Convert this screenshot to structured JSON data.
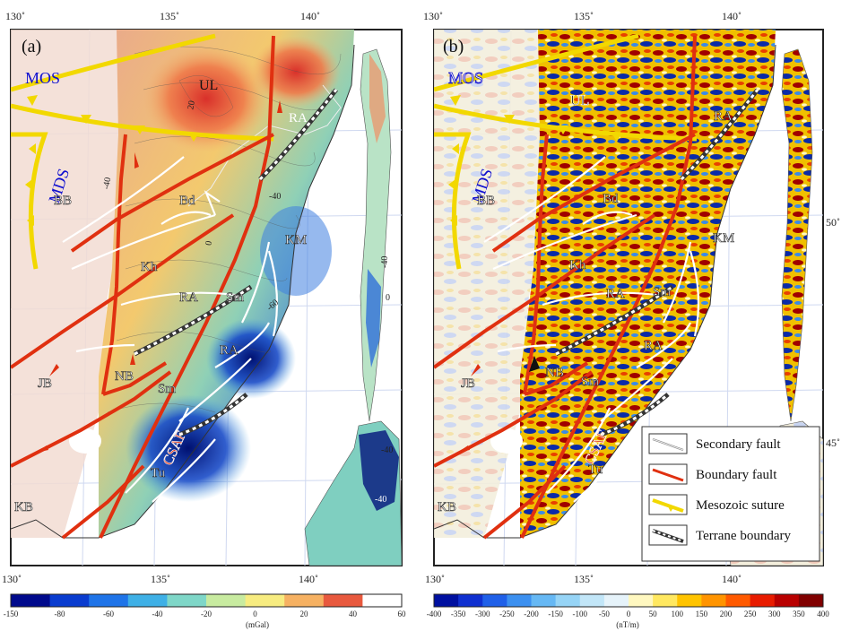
{
  "panels": [
    {
      "id": "a",
      "panel_label": "(a)",
      "lon_ticks_top": [
        "130˚",
        "135˚",
        "140˚"
      ],
      "lon_ticks_bottom": [
        "130˚",
        "135˚",
        "140˚"
      ],
      "region_labels": {
        "MOS": "MOS",
        "MDS": "MDS",
        "UL": "UL",
        "RA1": "RA",
        "BB": "BB",
        "Bd": "Bd",
        "KM": "KM",
        "Kh": "Kh",
        "RA2": "RA",
        "Sm1": "Sm",
        "RA3": "RA",
        "NB": "NB",
        "JB": "JB",
        "Sm2": "Sm",
        "CSAF": "CSAF",
        "Tu": "Tu",
        "KB": "KB"
      },
      "contour_labels": [
        "20",
        "-40",
        "-40",
        "0",
        "-40",
        "-60",
        "-40",
        "-40",
        "0"
      ],
      "colorbar": {
        "ticks": [
          "-150",
          "-80",
          "-60",
          "-40",
          "-20",
          "0",
          "20",
          "40",
          "60"
        ],
        "unit": "(mGal)",
        "colors": [
          "#000a8c",
          "#0a3ccf",
          "#1f74e8",
          "#3fb0e6",
          "#7fd7c8",
          "#c8eba0",
          "#f7ec80",
          "#f6b162",
          "#e8593e",
          "#ffffff"
        ]
      }
    },
    {
      "id": "b",
      "panel_label": "(b)",
      "lon_ticks_top": [
        "130˚",
        "135˚",
        "140˚"
      ],
      "lon_ticks_bottom": [
        "130˚",
        "135˚",
        "140˚"
      ],
      "lat_ticks": [
        "50˚",
        "45˚"
      ],
      "region_labels": {
        "MOS": "MOS",
        "MDS": "MDS",
        "UL": "UL",
        "RA1": "RA",
        "BB": "BB",
        "Bd": "Bd",
        "KM": "KM",
        "Kh": "Kh",
        "RA2": "RA",
        "Sm1": "Sm",
        "RA3": "RA",
        "NB": "NB",
        "JB": "JB",
        "Sm2": "Sm",
        "CSAF": "CSAF",
        "Tu": "Tu",
        "KB": "KB"
      },
      "colorbar": {
        "ticks": [
          "-400",
          "-350",
          "-300",
          "-250",
          "-200",
          "-150",
          "-100",
          "-50",
          "0",
          "50",
          "100",
          "150",
          "200",
          "250",
          "300",
          "350",
          "400"
        ],
        "unit": "(nT/m)",
        "colors": [
          "#0010a0",
          "#1030d0",
          "#2060e8",
          "#3c90f0",
          "#66b8f4",
          "#96d4f6",
          "#c2e6f8",
          "#e6f3fa",
          "#fff8c0",
          "#ffe860",
          "#ffc400",
          "#ff9400",
          "#ff5a00",
          "#e81c00",
          "#b80000",
          "#800000"
        ]
      }
    }
  ],
  "legend": {
    "items": [
      {
        "label": "Secondary fault",
        "icon": "secondary-fault-icon"
      },
      {
        "label": "Boundary fault",
        "icon": "boundary-fault-icon"
      },
      {
        "label": "Mesozoic suture",
        "icon": "mesozoic-suture-icon"
      },
      {
        "label": "Terrane boundary",
        "icon": "terrane-boundary-icon"
      }
    ]
  },
  "colors": {
    "boundary_fault": "#e03010",
    "suture": "#f2d800",
    "secondary_fault": "#ffffff",
    "label_blue": "#1010d0"
  }
}
